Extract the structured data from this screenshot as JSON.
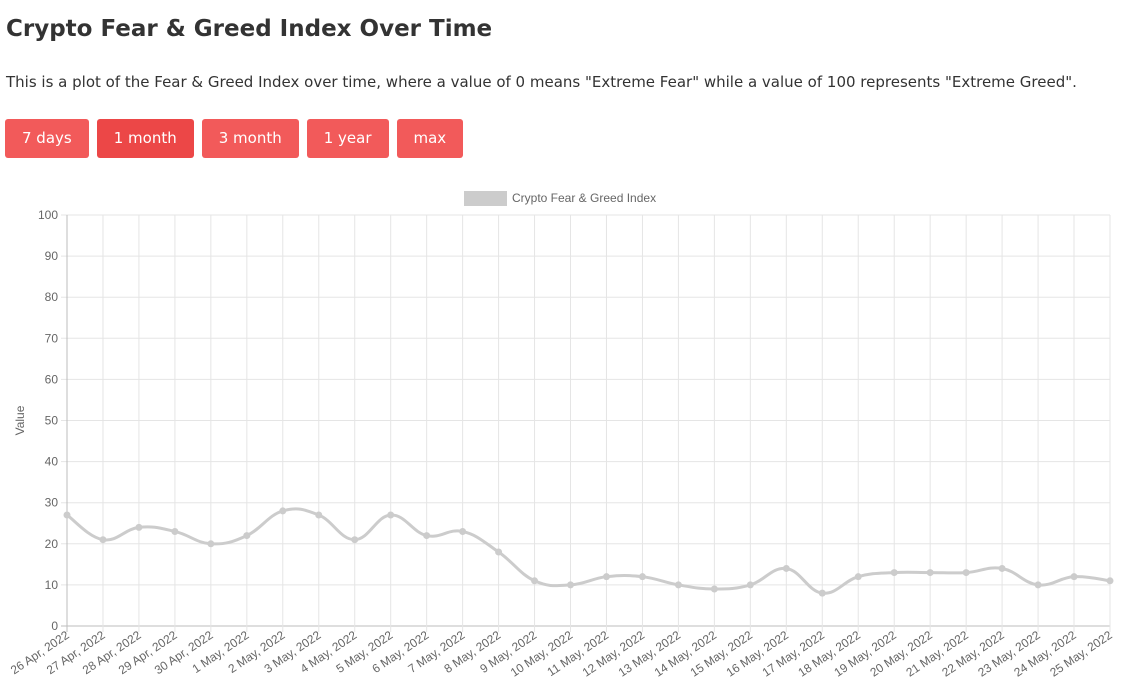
{
  "page": {
    "title": "Crypto Fear & Greed Index Over Time",
    "description": "This is a plot of the Fear & Greed Index over time, where a value of 0 means \"Extreme Fear\" while a value of 100 represents \"Extreme Greed\"."
  },
  "range_buttons": [
    "7 days",
    "1 month",
    "3 month",
    "1 year",
    "max"
  ],
  "selected_range": "1 month",
  "chart_data": {
    "type": "line",
    "title": "",
    "xlabel": "",
    "ylabel": "Value",
    "ylim": [
      0,
      100
    ],
    "yticks": [
      0,
      10,
      20,
      30,
      40,
      50,
      60,
      70,
      80,
      90,
      100
    ],
    "grid": true,
    "legend_position": "top",
    "categories": [
      "26 Apr, 2022",
      "27 Apr, 2022",
      "28 Apr, 2022",
      "29 Apr, 2022",
      "30 Apr, 2022",
      "1 May, 2022",
      "2 May, 2022",
      "3 May, 2022",
      "4 May, 2022",
      "5 May, 2022",
      "6 May, 2022",
      "7 May, 2022",
      "8 May, 2022",
      "9 May, 2022",
      "10 May, 2022",
      "11 May, 2022",
      "12 May, 2022",
      "13 May, 2022",
      "14 May, 2022",
      "15 May, 2022",
      "16 May, 2022",
      "17 May, 2022",
      "18 May, 2022",
      "19 May, 2022",
      "20 May, 2022",
      "21 May, 2022",
      "22 May, 2022",
      "23 May, 2022",
      "24 May, 2022",
      "25 May, 2022"
    ],
    "series": [
      {
        "name": "Crypto Fear & Greed Index",
        "color": "#cccccc",
        "values": [
          27,
          21,
          24,
          23,
          20,
          22,
          28,
          27,
          21,
          27,
          22,
          23,
          18,
          11,
          10,
          12,
          12,
          10,
          9,
          10,
          14,
          8,
          12,
          13,
          13,
          13,
          14,
          10,
          12,
          11
        ]
      }
    ]
  }
}
